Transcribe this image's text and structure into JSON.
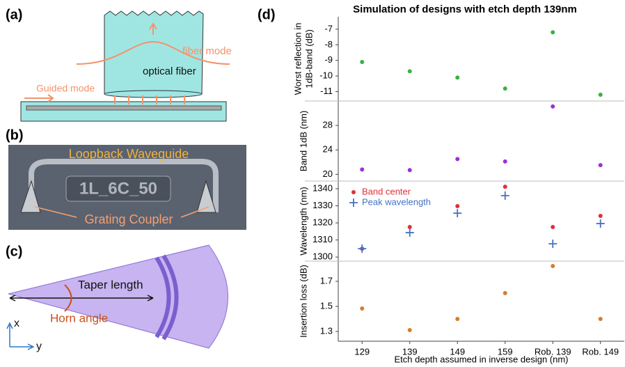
{
  "figure_labels": [
    "(a)",
    "(b)",
    "(c)",
    "(d)"
  ],
  "diagrams": {
    "a": {
      "guided": "Guided mode",
      "fiber_mode": "fiber mode",
      "fiber": "optical fiber"
    },
    "b": {
      "loopback": "Loopback Waveguide",
      "chip_label": "1L_6C_50",
      "coupler": "Grating Coupler"
    },
    "c": {
      "taper": "Taper length",
      "horn": "Horn angle",
      "axis_x": "x",
      "axis_y": "y"
    }
  },
  "chart_data": {
    "type": "scatter",
    "title": "Simulation of designs with etch depth 139nm",
    "x_label": "Etch depth assumed in inverse design (nm)",
    "categories": [
      "129",
      "139",
      "149",
      "159",
      "Rob. 139",
      "Rob. 149"
    ],
    "legend": "upper-left",
    "panels": [
      {
        "ylabel": [
          "Worst  reflection in",
          "1dB-band (dB)"
        ],
        "ylim": [
          -11.6,
          -6.2
        ],
        "yticks": [
          -11,
          -10,
          -9,
          -8,
          -7
        ],
        "series": [
          {
            "color": "#3cb043",
            "marker": "circle",
            "values": [
              -9.1,
              -9.7,
              -10.1,
              -10.8,
              -7.2,
              -11.2
            ]
          }
        ]
      },
      {
        "ylabel": [
          "Band 1dB (nm)"
        ],
        "ylim": [
          18.9,
          32
        ],
        "yticks": [
          20,
          24,
          28
        ],
        "series": [
          {
            "color": "#9b30d9",
            "marker": "circle",
            "values": [
              20.8,
              20.7,
              22.5,
              22.1,
              31.1,
              21.5
            ]
          }
        ]
      },
      {
        "ylabel": [
          "Wavelength (nm)"
        ],
        "ylim": [
          1297.6,
          1344.5
        ],
        "yticks": [
          1300,
          1310,
          1320,
          1330,
          1340
        ],
        "series": [
          {
            "name": "Band center",
            "color": "#e0303a",
            "marker": "circle",
            "values": [
              1304.9,
              1317.6,
              1329.8,
              1341.2,
              1317.6,
              1324.1
            ]
          },
          {
            "name": "Peak wavelength",
            "color": "#4472c4",
            "marker": "plus",
            "values": [
              1304.9,
              1314.3,
              1325.7,
              1336,
              1307.8,
              1319.6
            ]
          }
        ]
      },
      {
        "ylabel": [
          "Insertion loss (dB)"
        ],
        "ylim": [
          1.222,
          1.861
        ],
        "yticks": [
          1.3,
          1.5,
          1.7
        ],
        "series": [
          {
            "color": "#d67d2a",
            "marker": "circle",
            "values": [
              1.483,
              1.311,
              1.4,
              1.606,
              1.822,
              1.4
            ]
          }
        ]
      }
    ]
  }
}
